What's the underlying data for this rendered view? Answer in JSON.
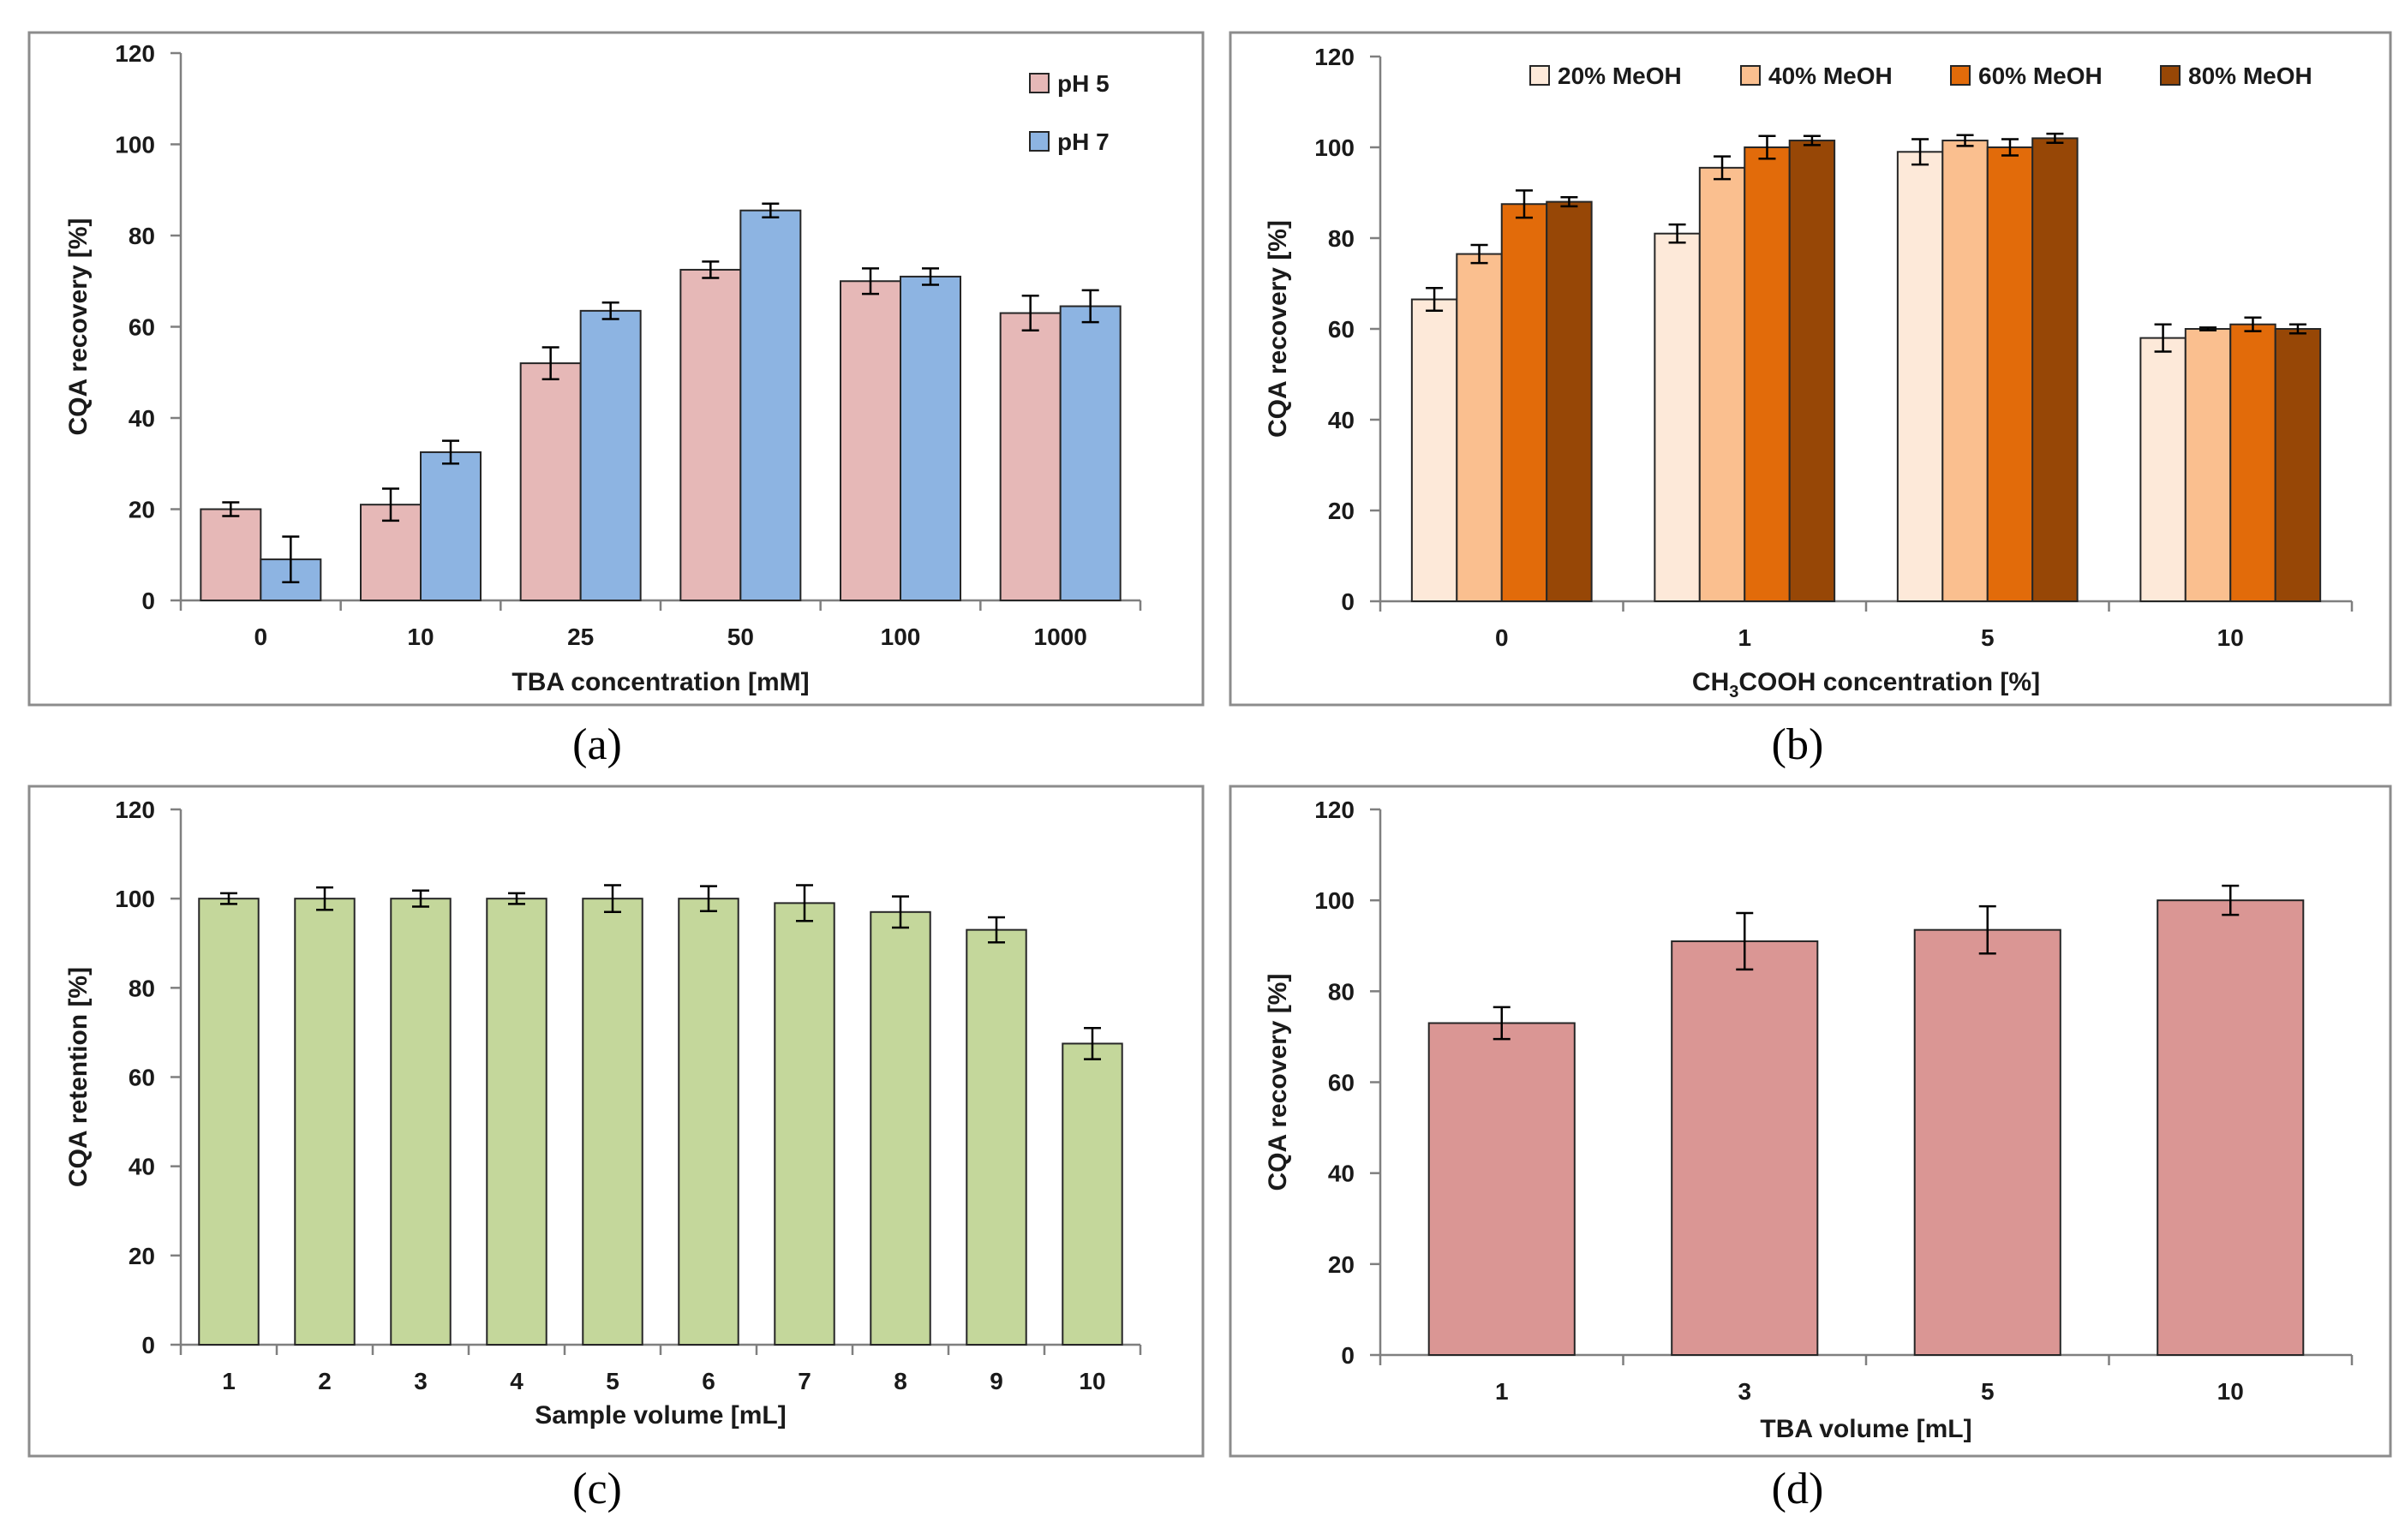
{
  "chart_data": [
    {
      "id": "a",
      "type": "bar",
      "panel_label": "(a)",
      "xlabel": "TBA concentration [mM]",
      "ylabel": "CQA recovery [%]",
      "ylim": [
        0,
        120
      ],
      "yticks": [
        0,
        20,
        40,
        60,
        80,
        100,
        120
      ],
      "categories": [
        "0",
        "10",
        "25",
        "50",
        "100",
        "1000"
      ],
      "legend_position": "top-right",
      "legend_layout": "vertical",
      "series": [
        {
          "name": "pH 5",
          "color": "#e6b8b7",
          "values": [
            20,
            21,
            52,
            72.5,
            70,
            63
          ],
          "errors": [
            1.5,
            3.5,
            3.5,
            1.8,
            2.8,
            3.8
          ]
        },
        {
          "name": "pH 7",
          "color": "#8db4e2",
          "values": [
            9,
            32.5,
            63.5,
            85.5,
            71,
            64.5
          ],
          "errors": [
            5,
            2.5,
            1.8,
            1.5,
            1.8,
            3.5
          ]
        }
      ]
    },
    {
      "id": "b",
      "type": "bar",
      "panel_label": "(b)",
      "xlabel_parts": [
        "CH",
        "3",
        "COOH concentration [%]"
      ],
      "ylabel": "CQA recovery [%]",
      "ylim": [
        0,
        120
      ],
      "yticks": [
        0,
        20,
        40,
        60,
        80,
        100,
        120
      ],
      "categories": [
        "0",
        "1",
        "5",
        "10"
      ],
      "legend_position": "top",
      "legend_layout": "horizontal",
      "series": [
        {
          "name": "20% MeOH",
          "color": "#fde9d9",
          "values": [
            66.5,
            81,
            99,
            58
          ],
          "errors": [
            2.5,
            2,
            2.8,
            3
          ]
        },
        {
          "name": "40% MeOH",
          "color": "#fabf8f",
          "values": [
            76.5,
            95.5,
            101.5,
            60
          ],
          "errors": [
            2,
            2.5,
            1.2,
            0.3
          ]
        },
        {
          "name": "60% MeOH",
          "color": "#e26b0a",
          "values": [
            87.5,
            100,
            100,
            61
          ],
          "errors": [
            3,
            2.5,
            1.8,
            1.5
          ]
        },
        {
          "name": "80% MeOH",
          "color": "#974706",
          "values": [
            88,
            101.5,
            102,
            60
          ],
          "errors": [
            1,
            1,
            1,
            1
          ]
        }
      ]
    },
    {
      "id": "c",
      "type": "bar",
      "panel_label": "(c)",
      "xlabel": "Sample volume [mL]",
      "ylabel": "CQA retention [%]",
      "ylim": [
        0,
        120
      ],
      "yticks": [
        0,
        20,
        40,
        60,
        80,
        100,
        120
      ],
      "categories": [
        "1",
        "2",
        "3",
        "4",
        "5",
        "6",
        "7",
        "8",
        "9",
        "10"
      ],
      "series": [
        {
          "color": "#c4d79b",
          "values": [
            100,
            100,
            100,
            100,
            100,
            100,
            99,
            97,
            93,
            67.5
          ],
          "errors": [
            1.2,
            2.5,
            1.8,
            1.2,
            3,
            2.8,
            4,
            3.5,
            2.8,
            3.5
          ]
        }
      ]
    },
    {
      "id": "d",
      "type": "bar",
      "panel_label": "(d)",
      "xlabel": "TBA volume [mL]",
      "ylabel": "CQA recovery [%]",
      "ylim": [
        0,
        120
      ],
      "yticks": [
        0,
        20,
        40,
        60,
        80,
        100,
        120
      ],
      "categories": [
        "1",
        "3",
        "5",
        "10"
      ],
      "series": [
        {
          "color": "#da9694",
          "values": [
            73,
            91,
            93.5,
            100
          ],
          "errors": [
            3.5,
            6.2,
            5.2,
            3.2
          ]
        }
      ]
    }
  ]
}
